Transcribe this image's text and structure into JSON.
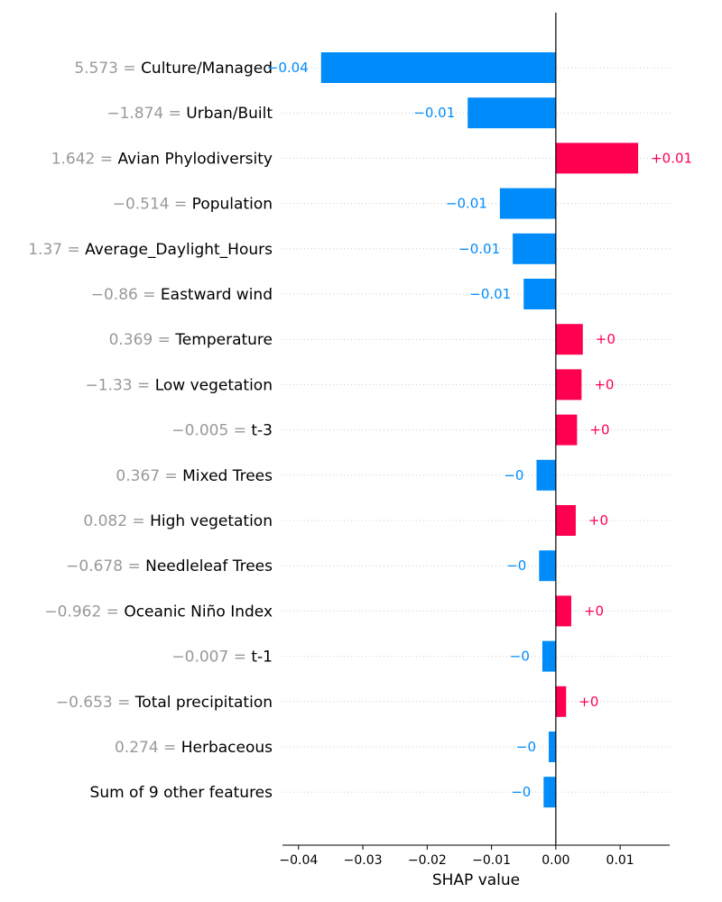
{
  "chart_data": {
    "type": "bar",
    "orientation": "horizontal",
    "xlabel": "SHAP value",
    "xlim": [
      -0.0425,
      0.0177
    ],
    "xticks": [
      -0.04,
      -0.03,
      -0.02,
      -0.01,
      0.0,
      0.01
    ],
    "xtick_labels": [
      "−0.04",
      "−0.03",
      "−0.02",
      "−0.01",
      "0.00",
      "0.01"
    ],
    "colors": {
      "positive": "#ff0051",
      "negative": "#008bfb",
      "feature_value": "#999999"
    },
    "grid": "horizontal dotted",
    "bars": [
      {
        "value_text": "5.573 = ",
        "name": "Culture/Managed",
        "shap": -0.0365,
        "label": "−0.04"
      },
      {
        "value_text": "−1.874 = ",
        "name": "Urban/Built",
        "shap": -0.0137,
        "label": "−0.01"
      },
      {
        "value_text": "1.642 = ",
        "name": "Avian Phylodiversity",
        "shap": 0.0128,
        "label": "+0.01"
      },
      {
        "value_text": "−0.514 = ",
        "name": "Population",
        "shap": -0.0087,
        "label": "−0.01"
      },
      {
        "value_text": "1.37 = ",
        "name": "Average_Daylight_Hours",
        "shap": -0.0067,
        "label": "−0.01"
      },
      {
        "value_text": "−0.86 = ",
        "name": "Eastward wind",
        "shap": -0.005,
        "label": "−0.01"
      },
      {
        "value_text": "0.369 = ",
        "name": "Temperature",
        "shap": 0.0042,
        "label": "+0"
      },
      {
        "value_text": "−1.33 = ",
        "name": "Low vegetation",
        "shap": 0.004,
        "label": "+0"
      },
      {
        "value_text": "−0.005 = ",
        "name": "t-3",
        "shap": 0.0033,
        "label": "+0"
      },
      {
        "value_text": "0.367 = ",
        "name": "Mixed Trees",
        "shap": -0.003,
        "label": "−0"
      },
      {
        "value_text": "0.082 = ",
        "name": "High vegetation",
        "shap": 0.0031,
        "label": "+0"
      },
      {
        "value_text": "−0.678 = ",
        "name": "Needleleaf Trees",
        "shap": -0.0026,
        "label": "−0"
      },
      {
        "value_text": "−0.962 = ",
        "name": "Oceanic Niño Index",
        "shap": 0.0024,
        "label": "+0"
      },
      {
        "value_text": "−0.007 = ",
        "name": "t-1",
        "shap": -0.0021,
        "label": "−0"
      },
      {
        "value_text": "−0.653 = ",
        "name": "Total precipitation",
        "shap": 0.0016,
        "label": "+0"
      },
      {
        "value_text": "0.274 = ",
        "name": "Herbaceous",
        "shap": -0.0011,
        "label": "−0"
      },
      {
        "value_text": "",
        "name": "Sum of 9 other features",
        "shap": -0.0019,
        "label": "−0"
      }
    ]
  }
}
